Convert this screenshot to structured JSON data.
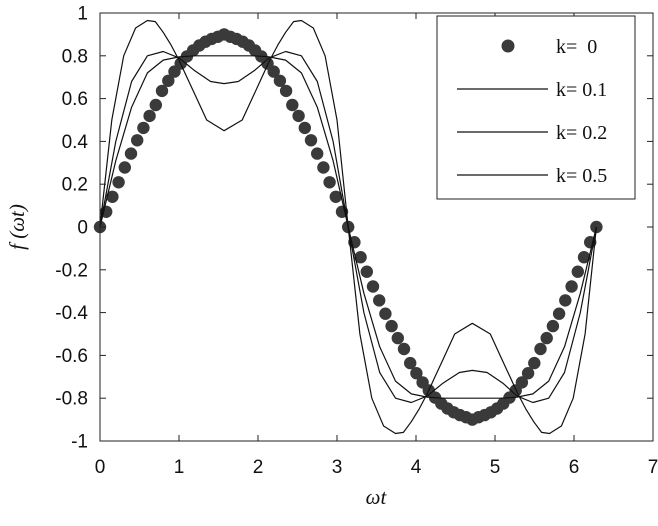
{
  "chart_data": {
    "type": "line",
    "title": "",
    "xlabel": "ωt",
    "ylabel": "f (ωt)",
    "xlim": [
      0,
      7
    ],
    "ylim": [
      -1,
      1
    ],
    "xticks": [
      "0",
      "1",
      "2",
      "3",
      "4",
      "5",
      "6",
      "7"
    ],
    "yticks": [
      "-1",
      "-0.8",
      "-0.6",
      "-0.4",
      "-0.2",
      "0",
      "0.2",
      "0.4",
      "0.6",
      "0.8",
      "1"
    ],
    "grid": false,
    "legend_position": "top-right",
    "series": [
      {
        "name": "k=  0",
        "style": "markers",
        "x": [
          0,
          0.0785,
          0.157,
          0.2356,
          0.3142,
          0.3927,
          0.4712,
          0.5498,
          0.6283,
          0.7069,
          0.7854,
          0.864,
          0.9425,
          1.021,
          1.0996,
          1.1781,
          1.2566,
          1.3352,
          1.4137,
          1.4923,
          1.5708,
          1.6493,
          1.7279,
          1.8064,
          1.885,
          1.9635,
          2.042,
          2.1206,
          2.1991,
          2.2777,
          2.3562,
          2.4347,
          2.5133,
          2.5918,
          2.6704,
          2.7489,
          2.8274,
          2.906,
          2.9845,
          3.0631,
          3.1416,
          3.2201,
          3.2987,
          3.3772,
          3.4558,
          3.5343,
          3.6128,
          3.6914,
          3.7699,
          3.8485,
          3.927,
          4.0055,
          4.0841,
          4.1626,
          4.2412,
          4.3197,
          4.3982,
          4.4768,
          4.5553,
          4.6339,
          4.7124,
          4.7909,
          4.8695,
          4.948,
          5.0265,
          5.1051,
          5.1836,
          5.2622,
          5.3407,
          5.4192,
          5.4978,
          5.5763,
          5.6549,
          5.7334,
          5.8119,
          5.8905,
          5.969,
          6.0476,
          6.1261,
          6.2046,
          6.2832
        ],
        "y": [
          0,
          0.071,
          0.141,
          0.209,
          0.278,
          0.343,
          0.405,
          0.463,
          0.519,
          0.57,
          0.636,
          0.683,
          0.726,
          0.764,
          0.797,
          0.825,
          0.848,
          0.866,
          0.879,
          0.889,
          0.9,
          0.889,
          0.879,
          0.866,
          0.848,
          0.825,
          0.797,
          0.764,
          0.726,
          0.683,
          0.636,
          0.57,
          0.519,
          0.463,
          0.405,
          0.343,
          0.278,
          0.209,
          0.141,
          0.071,
          0,
          -0.071,
          -0.141,
          -0.209,
          -0.278,
          -0.343,
          -0.405,
          -0.463,
          -0.519,
          -0.57,
          -0.636,
          -0.683,
          -0.726,
          -0.764,
          -0.797,
          -0.825,
          -0.848,
          -0.866,
          -0.879,
          -0.889,
          -0.9,
          -0.889,
          -0.879,
          -0.866,
          -0.848,
          -0.825,
          -0.797,
          -0.764,
          -0.726,
          -0.683,
          -0.636,
          -0.57,
          -0.519,
          -0.463,
          -0.405,
          -0.343,
          -0.278,
          -0.209,
          -0.141,
          -0.071,
          0
        ]
      },
      {
        "name": "k= 0.1",
        "style": "line",
        "x": [
          0,
          0.2,
          0.4,
          0.6,
          0.8,
          1.0,
          1.2,
          1.4,
          1.5708,
          1.75,
          1.95,
          2.14,
          2.35,
          2.55,
          2.75,
          2.95,
          3.1416,
          3.34,
          3.54,
          3.74,
          3.94,
          4.14,
          4.34,
          4.55,
          4.7124,
          4.9,
          5.1,
          5.28,
          5.48,
          5.68,
          5.88,
          6.08,
          6.2832
        ],
        "y": [
          0,
          0.31,
          0.56,
          0.72,
          0.78,
          0.795,
          0.8,
          0.8,
          0.8,
          0.8,
          0.8,
          0.795,
          0.78,
          0.72,
          0.56,
          0.31,
          0,
          -0.31,
          -0.56,
          -0.72,
          -0.78,
          -0.795,
          -0.8,
          -0.8,
          -0.8,
          -0.8,
          -0.8,
          -0.795,
          -0.78,
          -0.72,
          -0.56,
          -0.31,
          0
        ]
      },
      {
        "name": "k= 0.2",
        "style": "line",
        "x": [
          0,
          0.2,
          0.4,
          0.6,
          0.8,
          1.0,
          1.2,
          1.4,
          1.5708,
          1.75,
          1.95,
          2.14,
          2.35,
          2.55,
          2.75,
          2.95,
          3.1416,
          3.34,
          3.54,
          3.74,
          3.94,
          4.14,
          4.34,
          4.55,
          4.7124,
          4.9,
          5.1,
          5.28,
          5.48,
          5.68,
          5.88,
          6.08,
          6.2832
        ],
        "y": [
          0,
          0.4,
          0.68,
          0.8,
          0.82,
          0.79,
          0.73,
          0.68,
          0.67,
          0.68,
          0.73,
          0.79,
          0.82,
          0.8,
          0.68,
          0.4,
          0,
          -0.4,
          -0.68,
          -0.8,
          -0.82,
          -0.79,
          -0.73,
          -0.68,
          -0.67,
          -0.68,
          -0.73,
          -0.79,
          -0.82,
          -0.8,
          -0.68,
          -0.4,
          0
        ]
      },
      {
        "name": "k= 0.5",
        "style": "line",
        "x": [
          0,
          0.15,
          0.3,
          0.45,
          0.6,
          0.7,
          0.8,
          0.9,
          1.0,
          1.1,
          1.2,
          1.35,
          1.5708,
          1.8,
          1.95,
          2.05,
          2.15,
          2.25,
          2.35,
          2.45,
          2.55,
          2.7,
          2.85,
          3.0,
          3.1416,
          3.29,
          3.44,
          3.59,
          3.74,
          3.84,
          3.94,
          4.04,
          4.14,
          4.24,
          4.34,
          4.49,
          4.7124,
          4.94,
          5.09,
          5.19,
          5.29,
          5.39,
          5.49,
          5.59,
          5.69,
          5.84,
          5.99,
          6.14,
          6.2832
        ],
        "y": [
          0,
          0.5,
          0.8,
          0.93,
          0.965,
          0.96,
          0.91,
          0.85,
          0.78,
          0.7,
          0.62,
          0.5,
          0.45,
          0.5,
          0.62,
          0.7,
          0.78,
          0.85,
          0.91,
          0.96,
          0.965,
          0.93,
          0.8,
          0.5,
          0,
          -0.5,
          -0.8,
          -0.93,
          -0.965,
          -0.96,
          -0.91,
          -0.85,
          -0.78,
          -0.7,
          -0.62,
          -0.5,
          -0.45,
          -0.5,
          -0.62,
          -0.7,
          -0.78,
          -0.85,
          -0.91,
          -0.96,
          -0.965,
          -0.93,
          -0.8,
          -0.5,
          0
        ]
      }
    ]
  }
}
